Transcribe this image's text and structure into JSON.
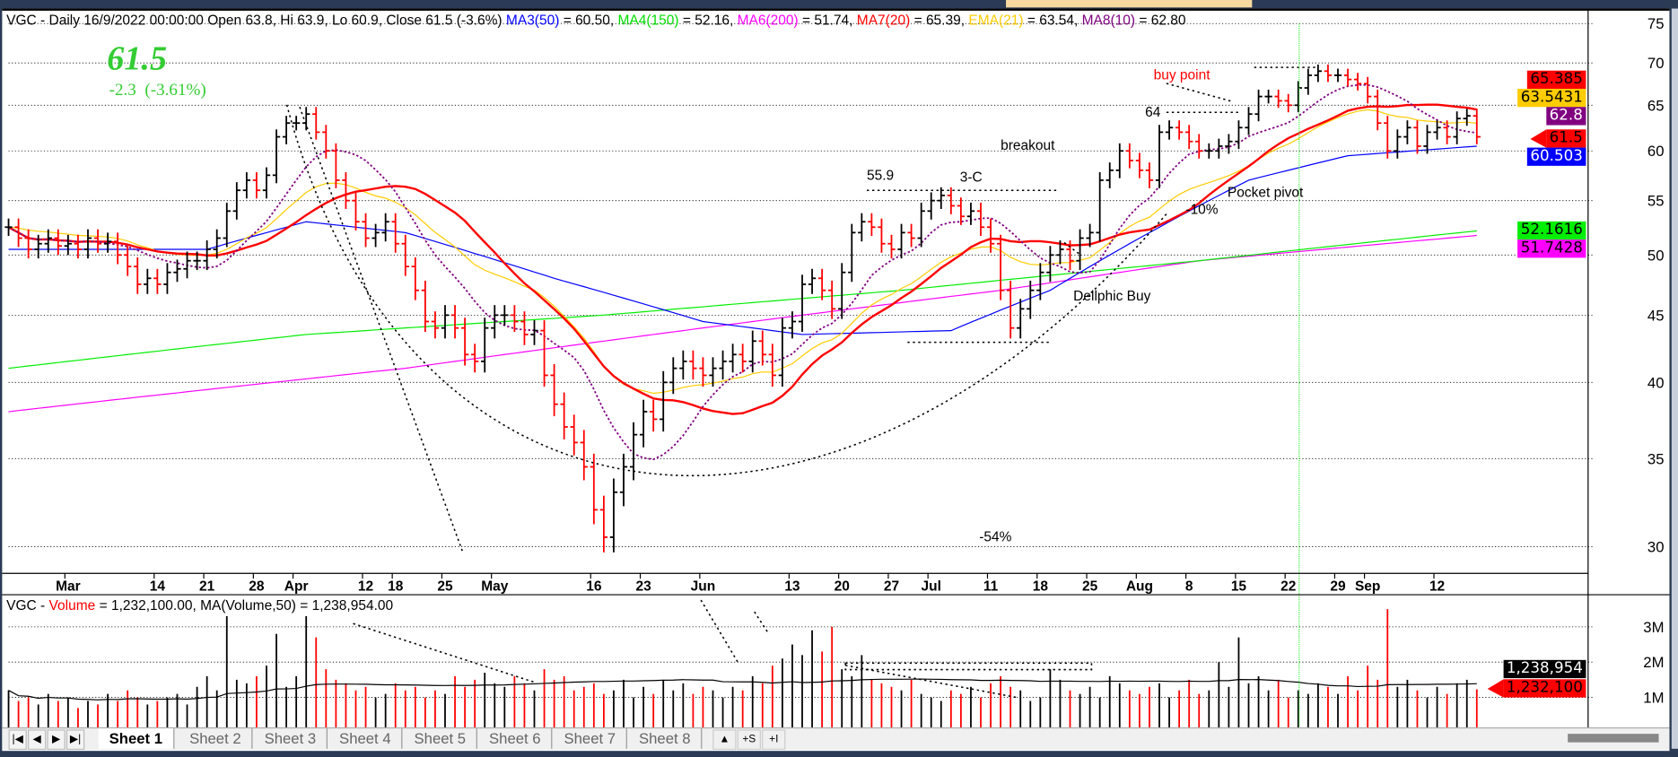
{
  "header": {
    "title": "VGC - Daily 16/9/2022 00:00:00 Open 63.8, Hi 63.9, Lo 60.9, Close 61.5 (-3.6%)",
    "ma3_label": "MA3(50)",
    "ma3_val": " = 60.50, ",
    "ma4_label": "MA4(150)",
    "ma4_val": " = 52.16, ",
    "ma6_label": "MA6(200)",
    "ma6_val": " = 51.74, ",
    "ma7_label": "MA7(20)",
    "ma7_val": " = 65.39, ",
    "ema_label": "EMA(21)",
    "ema_val": " = 63.54, ",
    "ma8_label": "MA8(10)",
    "ma8_val": " = 62.80"
  },
  "last_price": "61.5",
  "change": "-2.3  (-3.61%)",
  "annotations": {
    "buy_point": "buy point",
    "level_64": "64",
    "breakout": "breakout",
    "level_559": "55.9",
    "three_c": "3-C",
    "pocket_pivot": "Pocket pivot",
    "minus10": "-10%",
    "delphic": "Dellphic Buy",
    "minus54": "-54%"
  },
  "price_tags": {
    "ma7": "65.385",
    "ema": "63.5431",
    "ma8": "62.8",
    "close": "61.5",
    "ma3": "60.503",
    "ma4": "52.1616",
    "ma6": "51.7428"
  },
  "volume_header": {
    "prefix": "VGC - ",
    "label": "Volume",
    "rest": " = 1,232,100.00, MA(Volume,50) = 1,238,954.00"
  },
  "volume_tags": {
    "ma": "1,238,954",
    "vol": "1,232,100"
  },
  "tabs": [
    "Sheet 1",
    "Sheet 2",
    "Sheet 3",
    "Sheet 4",
    "Sheet 5",
    "Sheet 6",
    "Sheet 7",
    "Sheet 8"
  ],
  "tab_buttons": [
    "▲",
    "+S",
    "+I"
  ],
  "colors": {
    "up": "#000000",
    "down": "#ff0000",
    "ma3": "#0000ff",
    "ma4": "#00ee00",
    "ma6": "#ff00ff",
    "ma7": "#ff0000",
    "ema": "#ffcc00",
    "ma8": "#800080"
  },
  "chart_data": {
    "type": "ohlc",
    "symbol": "VGC",
    "interval": "Daily",
    "scale": "log",
    "ylim": [
      28,
      77
    ],
    "yticks": [
      30,
      35,
      40,
      45,
      50,
      55,
      60,
      65,
      70,
      75
    ],
    "date_ticks": [
      {
        "label": "Mar",
        "i": 6
      },
      {
        "label": "14",
        "i": 15
      },
      {
        "label": "21",
        "i": 20
      },
      {
        "label": "28",
        "i": 25
      },
      {
        "label": "Apr",
        "i": 29
      },
      {
        "label": "12",
        "i": 36
      },
      {
        "label": "18",
        "i": 39
      },
      {
        "label": "25",
        "i": 44
      },
      {
        "label": "May",
        "i": 49
      },
      {
        "label": "16",
        "i": 59
      },
      {
        "label": "23",
        "i": 64
      },
      {
        "label": "Jun",
        "i": 70
      },
      {
        "label": "13",
        "i": 79
      },
      {
        "label": "20",
        "i": 84
      },
      {
        "label": "27",
        "i": 89
      },
      {
        "label": "Jul",
        "i": 93
      },
      {
        "label": "11",
        "i": 99
      },
      {
        "label": "18",
        "i": 104
      },
      {
        "label": "25",
        "i": 109
      },
      {
        "label": "Aug",
        "i": 114
      },
      {
        "label": "8",
        "i": 119
      },
      {
        "label": "15",
        "i": 124
      },
      {
        "label": "22",
        "i": 129
      },
      {
        "label": "29",
        "i": 134
      },
      {
        "label": "Sep",
        "i": 137
      },
      {
        "label": "12",
        "i": 144
      }
    ],
    "close": [
      52.5,
      51.5,
      50.5,
      51,
      51.5,
      50.8,
      51,
      50.5,
      51.5,
      51,
      51.2,
      50,
      49,
      47.5,
      48,
      47.5,
      48.5,
      48.8,
      49.5,
      49.5,
      50.5,
      51.5,
      54,
      56,
      57,
      56,
      57.5,
      61.5,
      63,
      63,
      64,
      62,
      60,
      57,
      55,
      53,
      51.5,
      52,
      53,
      51,
      49,
      47,
      44.5,
      44,
      45,
      44,
      42,
      41.5,
      44,
      45,
      45,
      44.5,
      43.5,
      43.8,
      40.5,
      38.5,
      37,
      36,
      34.5,
      32,
      30.5,
      33,
      34.5,
      36.5,
      38,
      37.5,
      40,
      41,
      41.5,
      41,
      40.5,
      41,
      41.5,
      42,
      41.5,
      43,
      42,
      40.5,
      44,
      44.5,
      47.5,
      48,
      47,
      45.5,
      48.5,
      52,
      53,
      52.5,
      51,
      50.5,
      52,
      51.5,
      54,
      55,
      55.5,
      54.5,
      53.5,
      54,
      52.5,
      51,
      47,
      44,
      45.5,
      47,
      48.5,
      50,
      50.5,
      49.5,
      51.5,
      52,
      57,
      58,
      60,
      59,
      58,
      57,
      62,
      62.5,
      62,
      61,
      60,
      60,
      60.5,
      61,
      62.5,
      64,
      66,
      66,
      65.5,
      65,
      67,
      68.5,
      69,
      68.5,
      68.5,
      68,
      67.5,
      66,
      63,
      60,
      61.5,
      62.5,
      60.5,
      62,
      62.5,
      61.5,
      63.5,
      63.8,
      61.5
    ],
    "volume_millions": [
      1.2,
      0.9,
      1.0,
      0.8,
      1.1,
      0.9,
      1.0,
      0.7,
      0.9,
      0.8,
      1.1,
      0.9,
      1.2,
      1.0,
      0.8,
      0.9,
      1.0,
      1.1,
      0.8,
      1.3,
      1.6,
      1.2,
      3.3,
      1.5,
      1.4,
      1.6,
      1.9,
      2.8,
      1.3,
      1.6,
      3.3,
      2.7,
      1.8,
      1.5,
      1.4,
      1.2,
      1.3,
      1.0,
      1.1,
      1.4,
      1.2,
      1.3,
      1.0,
      1.2,
      1.1,
      1.6,
      1.3,
      1.5,
      1.7,
      1.4,
      1.3,
      1.6,
      1.4,
      1.2,
      1.8,
      1.5,
      1.6,
      1.2,
      1.3,
      1.4,
      1.1,
      1.2,
      1.5,
      1.0,
      1.3,
      1.1,
      1.5,
      1.2,
      1.4,
      1.1,
      1.3,
      1.2,
      1.0,
      1.3,
      1.2,
      1.6,
      1.4,
      1.9,
      2.1,
      2.5,
      2.2,
      2.9,
      2.3,
      3.0,
      1.8,
      1.6,
      2.2,
      1.5,
      1.4,
      1.3,
      1.2,
      1.5,
      1.1,
      1.0,
      0.9,
      1.2,
      1.1,
      1.3,
      1.0,
      1.4,
      1.6,
      1.3,
      1.2,
      0.9,
      1.0,
      1.8,
      1.5,
      1.2,
      1.1,
      1.3,
      1.0,
      1.6,
      1.4,
      1.2,
      1.1,
      1.3,
      1.4,
      1.0,
      1.2,
      1.5,
      1.1,
      1.2,
      2.0,
      1.3,
      2.7,
      1.4,
      1.6,
      1.2,
      1.5,
      1.0,
      1.2,
      1.1,
      1.4,
      1.3,
      1.1,
      1.6,
      1.2,
      1.9,
      1.5,
      3.5,
      1.3,
      1.5,
      1.2,
      1.0,
      1.3,
      1.1,
      1.4,
      1.5,
      1.23
    ],
    "volume_yticks": [
      {
        "label": "1M",
        "v": 1
      },
      {
        "label": "2M",
        "v": 2
      },
      {
        "label": "3M",
        "v": 3
      }
    ],
    "ma150_points": [
      [
        0,
        41
      ],
      [
        30,
        43.5
      ],
      [
        60,
        45
      ],
      [
        90,
        47
      ],
      [
        120,
        49.5
      ],
      [
        148,
        52.16
      ]
    ],
    "ma200_points": [
      [
        0,
        38
      ],
      [
        40,
        41
      ],
      [
        70,
        44
      ],
      [
        100,
        47
      ],
      [
        120,
        49.5
      ],
      [
        148,
        51.74
      ]
    ],
    "ma50_points": [
      [
        0,
        50.5
      ],
      [
        20,
        50.5
      ],
      [
        30,
        53
      ],
      [
        40,
        52
      ],
      [
        55,
        48
      ],
      [
        70,
        44.5
      ],
      [
        80,
        43.5
      ],
      [
        95,
        43.8
      ],
      [
        105,
        47
      ],
      [
        115,
        52
      ],
      [
        125,
        57
      ],
      [
        135,
        59.5
      ],
      [
        148,
        60.5
      ]
    ]
  }
}
